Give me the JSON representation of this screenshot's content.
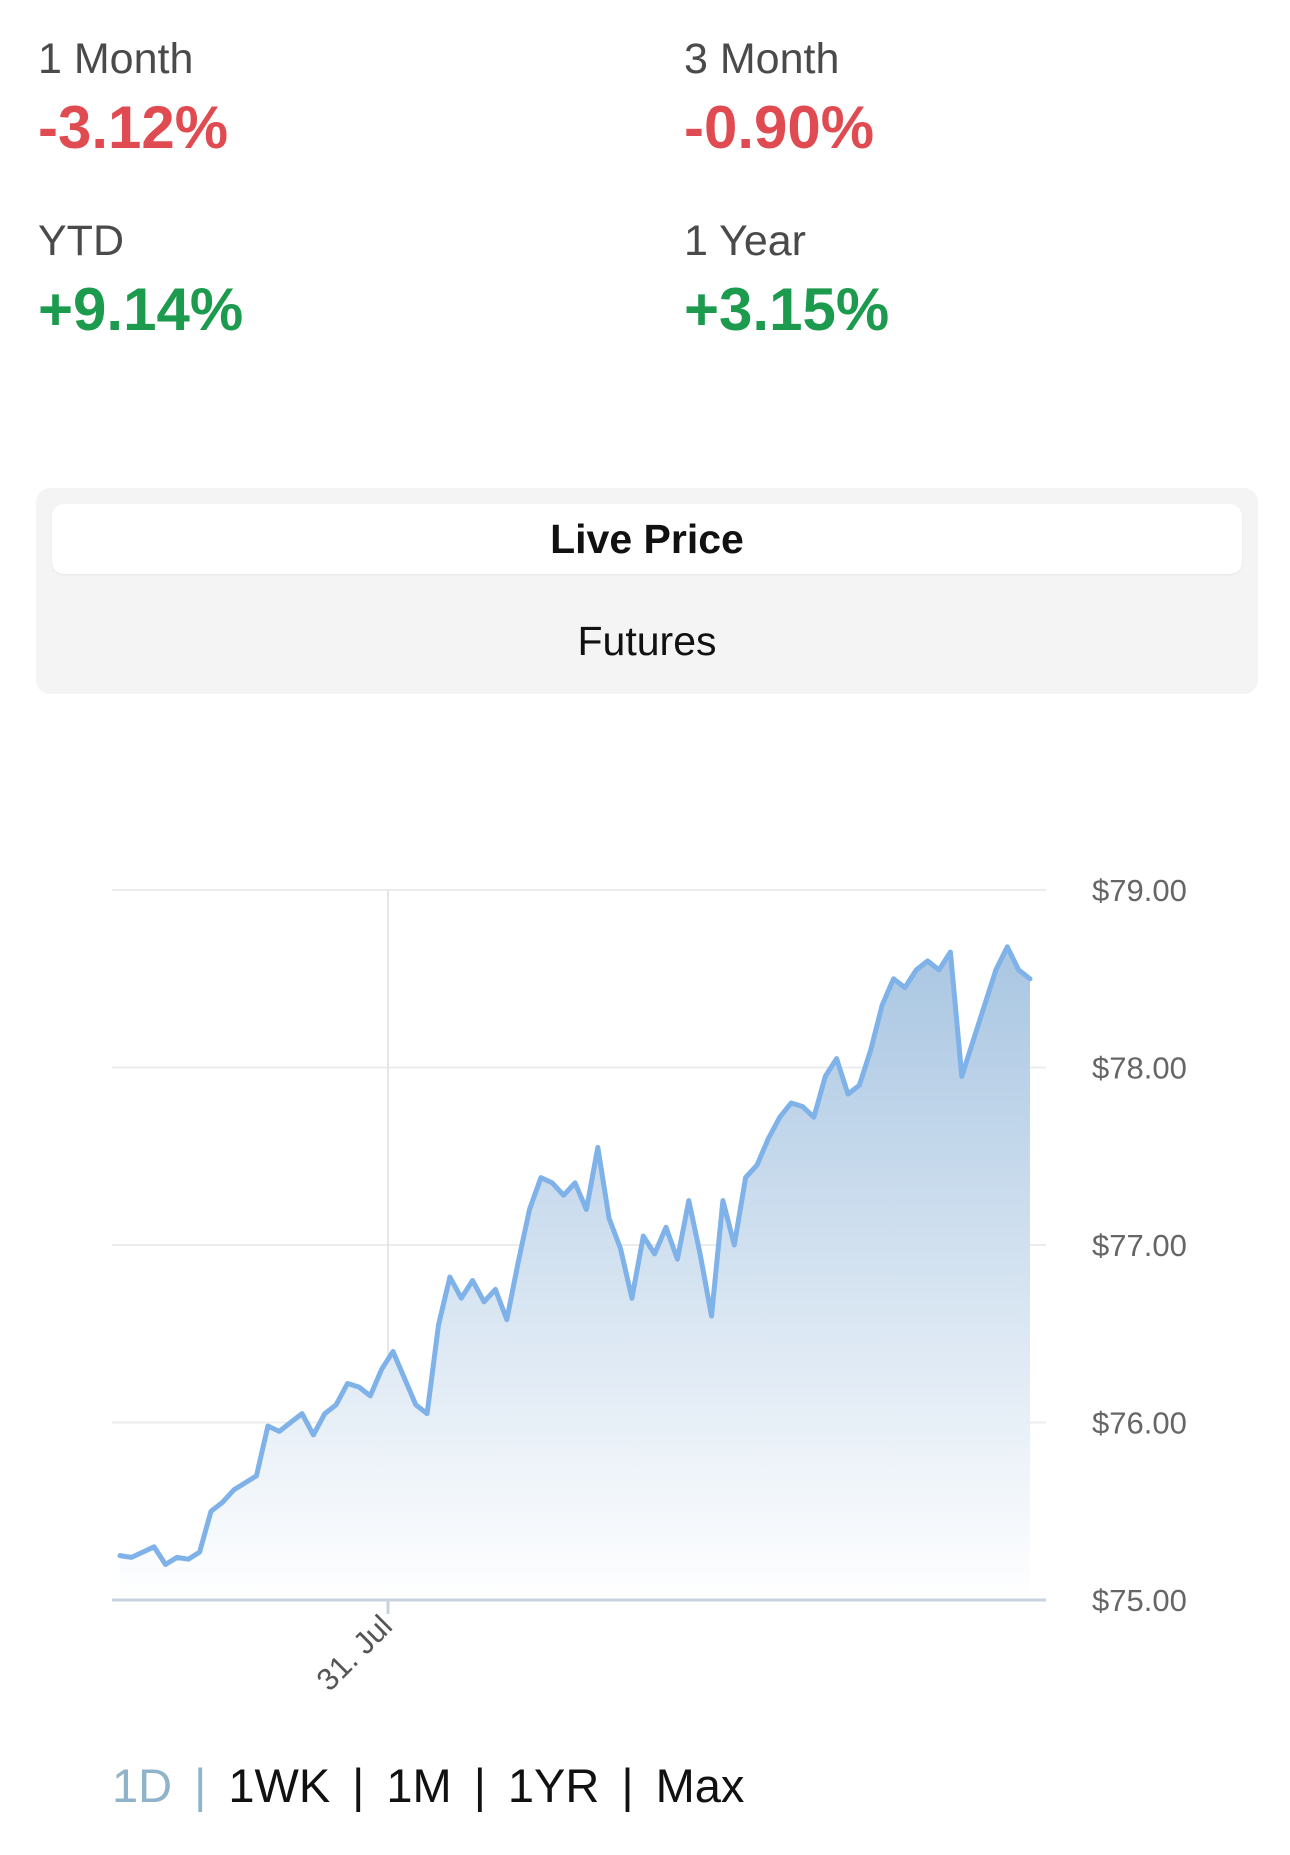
{
  "stats": [
    {
      "label": "1 Month",
      "value": "-3.12%",
      "trend": "negative"
    },
    {
      "label": "3 Month",
      "value": "-0.90%",
      "trend": "negative"
    },
    {
      "label": "YTD",
      "value": "+9.14%",
      "trend": "positive"
    },
    {
      "label": "1 Year",
      "value": "+3.15%",
      "trend": "positive"
    }
  ],
  "toggle": {
    "options": [
      "Live Price",
      "Futures"
    ],
    "selected": "Live Price"
  },
  "chart_data": {
    "type": "area",
    "title": "",
    "xlabel": "",
    "ylabel": "",
    "ylim": [
      75,
      79
    ],
    "yticks": [
      "$75.00",
      "$76.00",
      "$77.00",
      "$78.00",
      "$79.00"
    ],
    "xticks": [
      "31. Jul"
    ],
    "grid": true,
    "colors": {
      "line": "#7fb2e8",
      "fill_top": "#a9c6e2",
      "fill_bottom": "#ffffff"
    },
    "series": [
      {
        "values": [
          75.25,
          75.24,
          75.27,
          75.3,
          75.2,
          75.24,
          75.23,
          75.27,
          75.5,
          75.55,
          75.62,
          75.66,
          75.7,
          75.98,
          75.95,
          76.0,
          76.05,
          75.93,
          76.05,
          76.1,
          76.22,
          76.2,
          76.15,
          76.3,
          76.4,
          76.25,
          76.1,
          76.05,
          76.55,
          76.82,
          76.7,
          76.8,
          76.68,
          76.75,
          76.58,
          76.9,
          77.2,
          77.38,
          77.35,
          77.28,
          77.35,
          77.2,
          77.55,
          77.15,
          76.98,
          76.7,
          77.05,
          76.95,
          77.1,
          76.92,
          77.25,
          76.95,
          76.6,
          77.25,
          77.0,
          77.38,
          77.45,
          77.6,
          77.72,
          77.8,
          77.78,
          77.72,
          77.95,
          78.05,
          77.85,
          77.9,
          78.1,
          78.35,
          78.5,
          78.45,
          78.55,
          78.6,
          78.55,
          78.65,
          77.95,
          78.15,
          78.35,
          78.55,
          78.68,
          78.55,
          78.5
        ]
      }
    ]
  },
  "ranges": {
    "items": [
      "1D",
      "1WK",
      "1M",
      "1YR",
      "Max"
    ],
    "selected": "1D"
  }
}
